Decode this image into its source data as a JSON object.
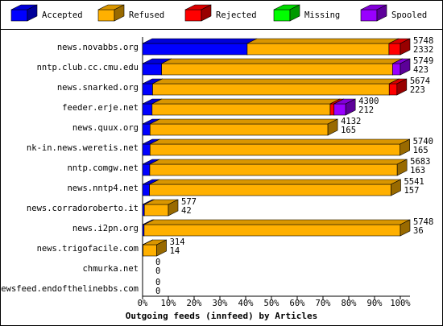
{
  "chart_data": {
    "type": "bar3d-stacked-horizontal",
    "title": "Outgoing feeds (innfeed) by Articles",
    "categories": [
      "news.novabbs.org",
      "nntp.club.cc.cmu.edu",
      "news.snarked.org",
      "feeder.erje.net",
      "news.quux.org",
      "nk-in.news.weretis.net",
      "nntp.comgw.net",
      "news.nntp4.net",
      "news.corradoroberto.it",
      "news.i2pn.org",
      "news.trigofacile.com",
      "chmurka.net",
      "newsfeed.endofthelinebbs.com"
    ],
    "series": [
      {
        "name": "Accepted",
        "color": "#0000ff",
        "values": [
          40.6,
          7.4,
          3.9,
          3.7,
          2.9,
          2.9,
          2.8,
          2.7,
          0.7,
          0.6,
          0.2,
          0,
          0
        ]
      },
      {
        "name": "Refused",
        "color": "#ffb000",
        "values": [
          55,
          89.6,
          91.8,
          69.1,
          69,
          97,
          96,
          93.7,
          9.3,
          99.4,
          5.3,
          0,
          0
        ]
      },
      {
        "name": "Rejected",
        "color": "#ff0000",
        "values": [
          4.4,
          0,
          3,
          1.5,
          0,
          0,
          0,
          0,
          0,
          0,
          0,
          0,
          0
        ]
      },
      {
        "name": "Missing",
        "color": "#00ff00",
        "values": [
          0,
          0,
          0,
          0,
          0,
          0,
          0,
          0,
          0,
          0,
          0,
          0,
          0
        ]
      },
      {
        "name": "Spooled",
        "color": "#9900ff",
        "values": [
          0,
          3,
          0,
          4.5,
          0,
          0,
          0,
          0,
          0,
          0,
          0,
          0,
          0
        ]
      }
    ],
    "offered": [
      5748,
      5749,
      5674,
      4300,
      4132,
      5740,
      5683,
      5541,
      577,
      5748,
      314,
      0,
      0
    ],
    "accepted": [
      2332,
      423,
      223,
      212,
      165,
      165,
      163,
      157,
      42,
      36,
      14,
      0,
      0
    ],
    "xlim": [
      0,
      100
    ],
    "xticks": [
      {
        "value": 0,
        "label": "0%"
      },
      {
        "value": 10,
        "label": "10%"
      },
      {
        "value": 20,
        "label": "20%"
      },
      {
        "value": 30,
        "label": "30%"
      },
      {
        "value": 40,
        "label": "40%"
      },
      {
        "value": 50,
        "label": "50%"
      },
      {
        "value": 60,
        "label": "60%"
      },
      {
        "value": 70,
        "label": "70%"
      },
      {
        "value": 80,
        "label": "80%"
      },
      {
        "value": 90,
        "label": "90%"
      },
      {
        "value": 100,
        "label": "100%"
      }
    ]
  }
}
